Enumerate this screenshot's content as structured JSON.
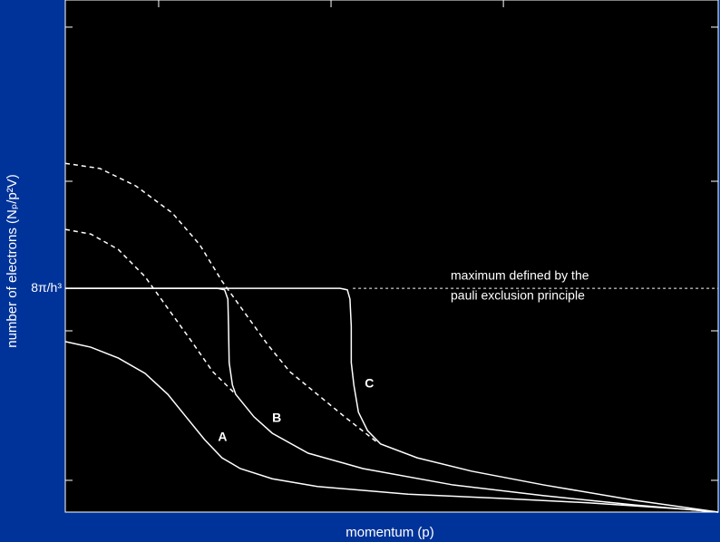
{
  "chart_data": {
    "type": "line",
    "xlabel": "momentum (p)",
    "ylabel": "number of electrons (Nₚ/p²V)",
    "xlim": [
      0,
      100
    ],
    "ylim": [
      0,
      100
    ],
    "yticks": [
      {
        "value": 43.7,
        "label": "8π/h³"
      }
    ],
    "minor_yticks": [
      94.7,
      64.6,
      35.4,
      6.2
    ],
    "minor_xticks": [
      14.3,
      40.7,
      67.1
    ],
    "annotation": [
      "maximum defined by the",
      "pauli exclusion principle"
    ],
    "color": "#ffffff",
    "series": [
      {
        "name": "A",
        "x": [
          0,
          3.9,
          8.1,
          12.2,
          15.7,
          18.5,
          21.3,
          24,
          26.8,
          31.7,
          38.6,
          52.5,
          66.4,
          80.3,
          95.6,
          100
        ],
        "values": [
          33.3,
          32.2,
          30.1,
          27.1,
          23,
          18.6,
          14.2,
          10.6,
          8.5,
          6.5,
          5,
          3.5,
          2.7,
          1.8,
          0.5,
          0
        ]
      },
      {
        "name": "B",
        "x": [
          0,
          23.3,
          24.4,
          24.9,
          25,
          25.1,
          25.6,
          26.1,
          28.9,
          31.7,
          37.2,
          45.6,
          59.4,
          73.3,
          87.2,
          100
        ],
        "values": [
          43.7,
          43.7,
          43.4,
          41.6,
          36.3,
          29.2,
          24.8,
          23,
          18.6,
          15.4,
          11.5,
          8.5,
          5.3,
          3.2,
          1.4,
          0
        ]
      },
      {
        "name": "C",
        "x": [
          0,
          42.1,
          43.2,
          43.6,
          43.8,
          43.8,
          44.2,
          44.9,
          46.3,
          48.3,
          53.9,
          62.2,
          73.3,
          87.2,
          100
        ],
        "values": [
          43.7,
          43.7,
          43.4,
          41.6,
          36.3,
          29.2,
          24.8,
          19.5,
          15.9,
          13.3,
          10.6,
          8,
          5.3,
          2.3,
          0
        ]
      }
    ],
    "dashed_series": [
      {
        "x": [
          0,
          5.3,
          10.8,
          16.4,
          20.6,
          24,
          27.5,
          31,
          34.4,
          38.6,
          42.8,
          47.6
        ],
        "values": [
          68.1,
          67.1,
          63.7,
          58.4,
          52.2,
          45.1,
          38.9,
          32.7,
          27.4,
          23,
          18.6,
          13.8
        ]
      },
      {
        "x": [
          0,
          3.9,
          8.1,
          12.2,
          15.7,
          19.2,
          22.6,
          26.1
        ],
        "values": [
          55.2,
          54.3,
          51.3,
          46,
          39.8,
          33.6,
          27.4,
          23
        ]
      }
    ]
  }
}
